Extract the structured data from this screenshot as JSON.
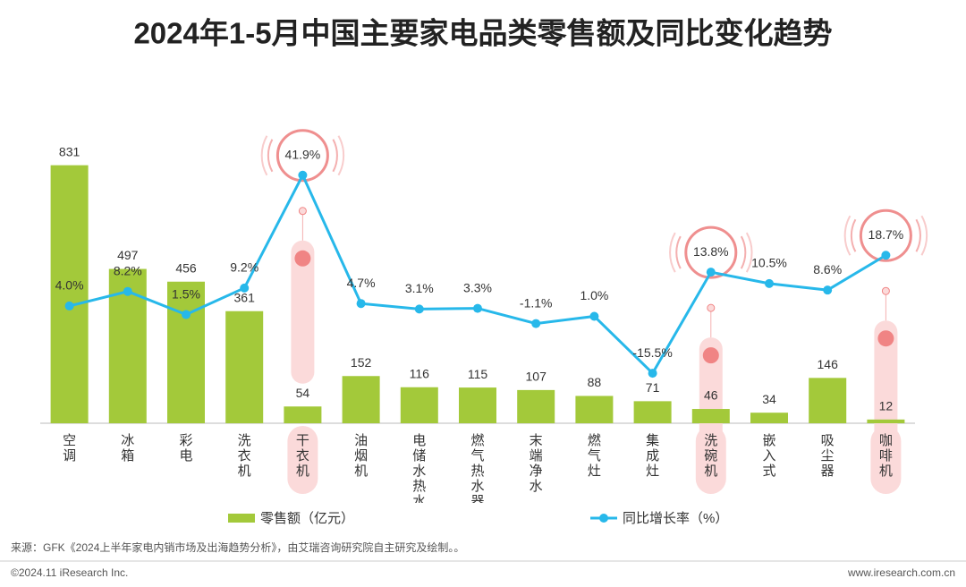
{
  "chart_data": {
    "type": "bar",
    "title": "2024年1-5月中国主要家电品类零售额及同比变化趋势",
    "categories": [
      "空调",
      "冰箱",
      "彩电",
      "洗衣机",
      "干衣机",
      "油烟机",
      "电储水热水器",
      "燃气热水器",
      "末端净水",
      "燃气灶",
      "集成灶",
      "洗碗机",
      "嵌入式",
      "吸尘器",
      "咖啡机"
    ],
    "series": [
      {
        "name": "零售额（亿元）",
        "type": "bar",
        "color": "#a3c93a",
        "values": [
          831,
          497,
          456,
          361,
          54,
          152,
          116,
          115,
          107,
          88,
          71,
          46,
          34,
          146,
          12
        ]
      },
      {
        "name": "同比增长率（%）",
        "type": "line",
        "axis": "y2",
        "color": "#27b8ea",
        "values": [
          4.0,
          8.2,
          1.5,
          9.2,
          41.9,
          4.7,
          3.1,
          3.3,
          -1.1,
          1.0,
          -15.5,
          13.8,
          10.5,
          8.6,
          18.7
        ],
        "value_labels": [
          "4.0%",
          "8.2%",
          "1.5%",
          "9.2%",
          "41.9%",
          "4.7%",
          "3.1%",
          "3.3%",
          "-1.1%",
          "1.0%",
          "-15.5%",
          "13.8%",
          "10.5%",
          "8.6%",
          "18.7%"
        ]
      }
    ],
    "ylim": [
      0,
      1000
    ],
    "y2lim": [
      -30,
      60
    ],
    "source": "来源：GFK《2024上半年家电内销市场及出海趋势分析》，由艾瑞咨询研究院自主研究及绘制。。",
    "copyright": "©2024.11 iResearch Inc.",
    "website": "www.iresearch.com.cn"
  }
}
